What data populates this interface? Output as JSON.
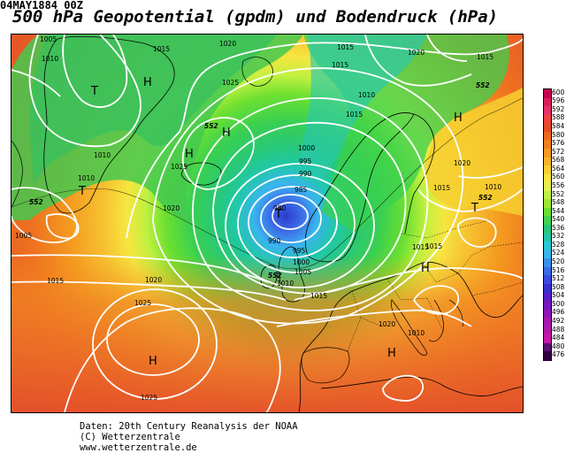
{
  "header": {
    "date": "04MAY1884 00Z",
    "title": "500 hPa Geopotential (gpdm) und Bodendruck (hPa)"
  },
  "colorbar": {
    "levels": [
      "600",
      "596",
      "592",
      "588",
      "584",
      "580",
      "576",
      "572",
      "568",
      "564",
      "560",
      "556",
      "552",
      "548",
      "544",
      "540",
      "536",
      "532",
      "528",
      "524",
      "520",
      "516",
      "512",
      "508",
      "504",
      "500",
      "496",
      "492",
      "488",
      "484",
      "480",
      "476"
    ],
    "colors": [
      "#c80050",
      "#d8205a",
      "#e8306a",
      "#f04040",
      "#e84c28",
      "#ee6820",
      "#f28020",
      "#f49a20",
      "#f6b428",
      "#f6d030",
      "#f6e640",
      "#e6f050",
      "#c0f040",
      "#9ee830",
      "#6ee030",
      "#44d250",
      "#28c878",
      "#20c8a8",
      "#28c8d8",
      "#3ab4ee",
      "#3c90ee",
      "#3c6ce8",
      "#3c4ce0",
      "#3a30d0",
      "#5a20c8",
      "#7818c0",
      "#9018b8",
      "#a818b0",
      "#b418a8",
      "#c818a8",
      "#5a1070",
      "#300040"
    ]
  },
  "isobars": {
    "labels": [
      "1005",
      "1010",
      "1015",
      "1020",
      "1015",
      "1015",
      "1020",
      "1015",
      "1025",
      "1010",
      "1025",
      "1020",
      "1015",
      "1010",
      "1000",
      "995",
      "990",
      "985",
      "980",
      "990",
      "995",
      "1000",
      "1005",
      "1010",
      "1015",
      "1010",
      "1015",
      "1020",
      "1025",
      "1025",
      "1020",
      "1015",
      "1010",
      "1015",
      "1020",
      "1005",
      "1010",
      "1015"
    ]
  },
  "pressure_centers": {
    "labels": [
      "H",
      "H",
      "H",
      "H",
      "T",
      "T",
      "T",
      "T",
      "H",
      "H",
      "H"
    ]
  },
  "geopotential_labels": [
    "552",
    "552",
    "552",
    "552",
    "552"
  ],
  "footer": {
    "line1": "Daten: 20th Century Reanalysis der NOAA",
    "line2": "(C) Wetterzentrale",
    "line3": "www.wetterzentrale.de"
  }
}
